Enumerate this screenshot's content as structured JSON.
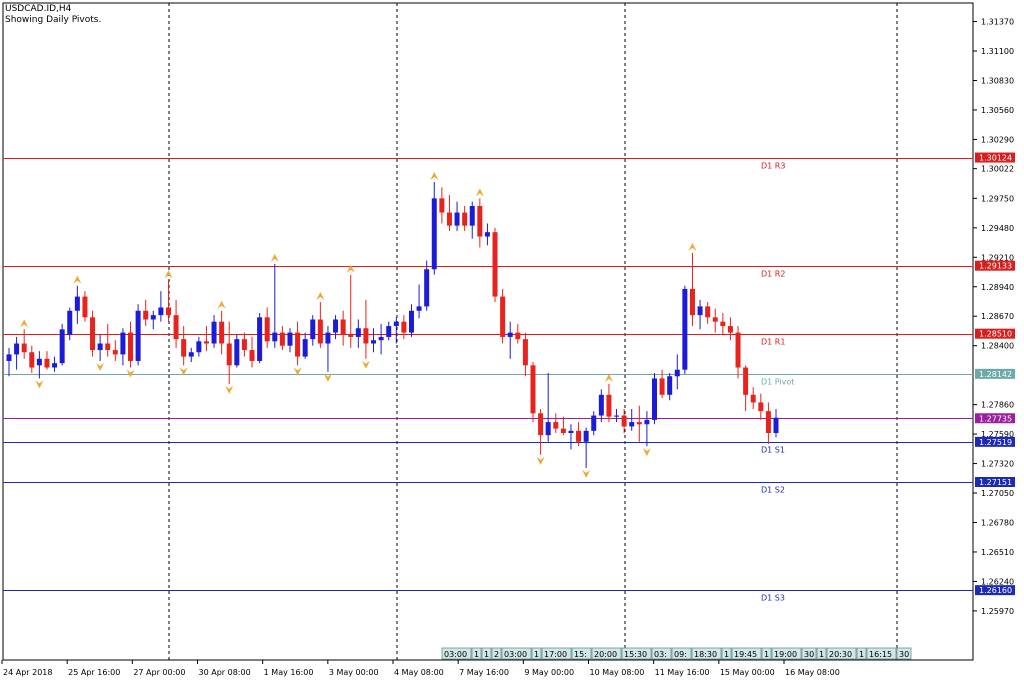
{
  "header": {
    "symbol_line": "USDCAD.ID,H4",
    "subtitle_line": "Showing Daily Pivots."
  },
  "colors": {
    "bull": "#1c1cd8",
    "bear": "#e8231e",
    "resistance": "#d81e1e",
    "support": "#1c2ab8",
    "pivot": "#6fa8a8",
    "current": "#9b1fa0",
    "arrow": "#f0a830",
    "grid": "#000000"
  },
  "y_axis": {
    "min": 1.2552,
    "max": 1.3154,
    "ticks": [
      "1.31370",
      "1.31100",
      "1.30830",
      "1.30560",
      "1.30290",
      "1.30022",
      "1.29750",
      "1.29480",
      "1.29210",
      "1.28940",
      "1.28670",
      "1.28400",
      "1.27860",
      "1.27590",
      "1.27320",
      "1.27050",
      "1.26780",
      "1.26510",
      "1.26240",
      "1.25970"
    ]
  },
  "x_axis": {
    "labels": [
      "24 Apr 2018",
      "25 Apr 16:00",
      "27 Apr 00:00",
      "30 Apr 08:00",
      "1 May 16:00",
      "3 May 00:00",
      "4 May 08:00",
      "7 May 16:00",
      "9 May 00:00",
      "10 May 08:00",
      "11 May 16:00",
      "15 May 00:00",
      "16 May 08:00"
    ]
  },
  "pivot_levels": [
    {
      "name": "D1 R3",
      "value": 1.30124,
      "label": "1.30124",
      "kind": "resistance"
    },
    {
      "name": "D1 R2",
      "value": 1.29133,
      "label": "1.29133",
      "kind": "resistance"
    },
    {
      "name": "D1 R1",
      "value": 1.2851,
      "label": "1.28510",
      "kind": "resistance"
    },
    {
      "name": "D1 Pivot",
      "value": 1.28142,
      "label": "1.28142",
      "kind": "pivot"
    },
    {
      "name": "D1 S1",
      "value": 1.27519,
      "label": "1.27519",
      "kind": "support"
    },
    {
      "name": "D1 S2",
      "value": 1.27151,
      "label": "1.27151",
      "kind": "support"
    },
    {
      "name": "D1 S3",
      "value": 1.2616,
      "label": "1.26160",
      "kind": "support"
    }
  ],
  "current_price": {
    "value": 1.27735,
    "label": "1.27735"
  },
  "session_boxes": [
    "03:00",
    "1",
    "1",
    "2",
    "03:00",
    "1",
    "17:00",
    "15:",
    "20:00",
    "15:30",
    "03:",
    "09:",
    "18:30",
    "1",
    "19:45",
    "1",
    "19:00",
    "30",
    "1",
    "20:30",
    "1",
    "16:15",
    "30"
  ],
  "chart_data": {
    "type": "candlestick",
    "title": "USDCAD.ID,H4",
    "subtitle": "Showing Daily Pivots.",
    "ylim": [
      1.2552,
      1.3154
    ],
    "categories": [
      "24 Apr 2018",
      "25 Apr 16:00",
      "27 Apr 00:00",
      "30 Apr 08:00",
      "1 May 16:00",
      "3 May 00:00",
      "4 May 08:00",
      "7 May 16:00",
      "9 May 00:00",
      "10 May 08:00",
      "11 May 16:00",
      "15 May 00:00",
      "16 May 08:00"
    ],
    "candles": [
      {
        "o": 1.2826,
        "h": 1.2838,
        "l": 1.2812,
        "c": 1.2832
      },
      {
        "o": 1.2832,
        "h": 1.2848,
        "l": 1.2818,
        "c": 1.2842
      },
      {
        "o": 1.2842,
        "h": 1.2855,
        "l": 1.2828,
        "c": 1.2834
      },
      {
        "o": 1.2834,
        "h": 1.284,
        "l": 1.2815,
        "c": 1.282
      },
      {
        "o": 1.2822,
        "h": 1.2835,
        "l": 1.281,
        "c": 1.2828
      },
      {
        "o": 1.2828,
        "h": 1.2835,
        "l": 1.2818,
        "c": 1.282
      },
      {
        "o": 1.282,
        "h": 1.283,
        "l": 1.2816,
        "c": 1.2824
      },
      {
        "o": 1.2824,
        "h": 1.286,
        "l": 1.2822,
        "c": 1.2855
      },
      {
        "o": 1.285,
        "h": 1.2875,
        "l": 1.2845,
        "c": 1.2872
      },
      {
        "o": 1.2872,
        "h": 1.2895,
        "l": 1.286,
        "c": 1.2885
      },
      {
        "o": 1.2885,
        "h": 1.289,
        "l": 1.2862,
        "c": 1.2866
      },
      {
        "o": 1.2866,
        "h": 1.2872,
        "l": 1.283,
        "c": 1.2836
      },
      {
        "o": 1.2836,
        "h": 1.285,
        "l": 1.2826,
        "c": 1.2842
      },
      {
        "o": 1.2842,
        "h": 1.286,
        "l": 1.283,
        "c": 1.2836
      },
      {
        "o": 1.2836,
        "h": 1.2845,
        "l": 1.2826,
        "c": 1.2832
      },
      {
        "o": 1.2832,
        "h": 1.2856,
        "l": 1.2822,
        "c": 1.2852
      },
      {
        "o": 1.2852,
        "h": 1.2862,
        "l": 1.282,
        "c": 1.2826
      },
      {
        "o": 1.2826,
        "h": 1.2878,
        "l": 1.2822,
        "c": 1.2872
      },
      {
        "o": 1.2872,
        "h": 1.2882,
        "l": 1.2858,
        "c": 1.2864
      },
      {
        "o": 1.2864,
        "h": 1.2872,
        "l": 1.2855,
        "c": 1.2868
      },
      {
        "o": 1.2868,
        "h": 1.289,
        "l": 1.2862,
        "c": 1.2875
      },
      {
        "o": 1.2875,
        "h": 1.29,
        "l": 1.2862,
        "c": 1.2868
      },
      {
        "o": 1.2868,
        "h": 1.2882,
        "l": 1.2838,
        "c": 1.2846
      },
      {
        "o": 1.2846,
        "h": 1.2858,
        "l": 1.2822,
        "c": 1.283
      },
      {
        "o": 1.283,
        "h": 1.2838,
        "l": 1.2825,
        "c": 1.2834
      },
      {
        "o": 1.2834,
        "h": 1.2848,
        "l": 1.283,
        "c": 1.2844
      },
      {
        "o": 1.2844,
        "h": 1.2858,
        "l": 1.2835,
        "c": 1.2842
      },
      {
        "o": 1.2842,
        "h": 1.2868,
        "l": 1.2838,
        "c": 1.2862
      },
      {
        "o": 1.2862,
        "h": 1.2872,
        "l": 1.2832,
        "c": 1.2842
      },
      {
        "o": 1.2842,
        "h": 1.2862,
        "l": 1.2805,
        "c": 1.2822
      },
      {
        "o": 1.2822,
        "h": 1.285,
        "l": 1.282,
        "c": 1.2846
      },
      {
        "o": 1.2846,
        "h": 1.2852,
        "l": 1.283,
        "c": 1.2836
      },
      {
        "o": 1.2836,
        "h": 1.2848,
        "l": 1.282,
        "c": 1.2826
      },
      {
        "o": 1.2826,
        "h": 1.287,
        "l": 1.2824,
        "c": 1.2866
      },
      {
        "o": 1.2866,
        "h": 1.2875,
        "l": 1.2838,
        "c": 1.2844
      },
      {
        "o": 1.2844,
        "h": 1.2915,
        "l": 1.2838,
        "c": 1.2852
      },
      {
        "o": 1.2852,
        "h": 1.2858,
        "l": 1.2836,
        "c": 1.284
      },
      {
        "o": 1.284,
        "h": 1.2856,
        "l": 1.2834,
        "c": 1.2852
      },
      {
        "o": 1.2852,
        "h": 1.2862,
        "l": 1.2822,
        "c": 1.283
      },
      {
        "o": 1.283,
        "h": 1.2852,
        "l": 1.2828,
        "c": 1.2846
      },
      {
        "o": 1.2846,
        "h": 1.2868,
        "l": 1.284,
        "c": 1.2864
      },
      {
        "o": 1.2864,
        "h": 1.288,
        "l": 1.2838,
        "c": 1.2842
      },
      {
        "o": 1.2842,
        "h": 1.2858,
        "l": 1.2816,
        "c": 1.2852
      },
      {
        "o": 1.2852,
        "h": 1.2868,
        "l": 1.2846,
        "c": 1.2864
      },
      {
        "o": 1.2864,
        "h": 1.2872,
        "l": 1.284,
        "c": 1.285
      },
      {
        "o": 1.285,
        "h": 1.2905,
        "l": 1.2838,
        "c": 1.2848
      },
      {
        "o": 1.2848,
        "h": 1.2864,
        "l": 1.2838,
        "c": 1.2856
      },
      {
        "o": 1.2856,
        "h": 1.2882,
        "l": 1.2828,
        "c": 1.2842
      },
      {
        "o": 1.2842,
        "h": 1.2856,
        "l": 1.2834,
        "c": 1.2845
      },
      {
        "o": 1.2845,
        "h": 1.286,
        "l": 1.2832,
        "c": 1.2848
      },
      {
        "o": 1.2848,
        "h": 1.2862,
        "l": 1.2845,
        "c": 1.2858
      },
      {
        "o": 1.2858,
        "h": 1.2866,
        "l": 1.2842,
        "c": 1.2862
      },
      {
        "o": 1.2862,
        "h": 1.2868,
        "l": 1.2846,
        "c": 1.2852
      },
      {
        "o": 1.2852,
        "h": 1.2878,
        "l": 1.2848,
        "c": 1.2872
      },
      {
        "o": 1.2872,
        "h": 1.2896,
        "l": 1.2865,
        "c": 1.2876
      },
      {
        "o": 1.2876,
        "h": 1.2918,
        "l": 1.2872,
        "c": 1.291
      },
      {
        "o": 1.291,
        "h": 1.299,
        "l": 1.2905,
        "c": 1.2975
      },
      {
        "o": 1.2975,
        "h": 1.2985,
        "l": 1.2952,
        "c": 1.2962
      },
      {
        "o": 1.2962,
        "h": 1.2978,
        "l": 1.2945,
        "c": 1.295
      },
      {
        "o": 1.295,
        "h": 1.2972,
        "l": 1.2945,
        "c": 1.2962
      },
      {
        "o": 1.2962,
        "h": 1.2968,
        "l": 1.2945,
        "c": 1.295
      },
      {
        "o": 1.295,
        "h": 1.2972,
        "l": 1.2938,
        "c": 1.2968
      },
      {
        "o": 1.2968,
        "h": 1.2975,
        "l": 1.293,
        "c": 1.294
      },
      {
        "o": 1.294,
        "h": 1.2952,
        "l": 1.2932,
        "c": 1.2944
      },
      {
        "o": 1.2944,
        "h": 1.2948,
        "l": 1.288,
        "c": 1.2885
      },
      {
        "o": 1.2885,
        "h": 1.2892,
        "l": 1.2842,
        "c": 1.2848
      },
      {
        "o": 1.2848,
        "h": 1.2862,
        "l": 1.2828,
        "c": 1.2852
      },
      {
        "o": 1.2852,
        "h": 1.286,
        "l": 1.2842,
        "c": 1.2846
      },
      {
        "o": 1.2846,
        "h": 1.2852,
        "l": 1.2812,
        "c": 1.2822
      },
      {
        "o": 1.2822,
        "h": 1.2825,
        "l": 1.277,
        "c": 1.2778
      },
      {
        "o": 1.2778,
        "h": 1.2782,
        "l": 1.274,
        "c": 1.2758
      },
      {
        "o": 1.2758,
        "h": 1.2815,
        "l": 1.2752,
        "c": 1.277
      },
      {
        "o": 1.277,
        "h": 1.2778,
        "l": 1.276,
        "c": 1.2764
      },
      {
        "o": 1.2764,
        "h": 1.2775,
        "l": 1.2758,
        "c": 1.276
      },
      {
        "o": 1.276,
        "h": 1.2768,
        "l": 1.2745,
        "c": 1.2762
      },
      {
        "o": 1.2762,
        "h": 1.277,
        "l": 1.2748,
        "c": 1.2752
      },
      {
        "o": 1.2752,
        "h": 1.2765,
        "l": 1.2728,
        "c": 1.2762
      },
      {
        "o": 1.2762,
        "h": 1.278,
        "l": 1.2758,
        "c": 1.2776
      },
      {
        "o": 1.2776,
        "h": 1.28,
        "l": 1.277,
        "c": 1.2795
      },
      {
        "o": 1.2795,
        "h": 1.2805,
        "l": 1.277,
        "c": 1.2775
      },
      {
        "o": 1.2775,
        "h": 1.2782,
        "l": 1.277,
        "c": 1.2776
      },
      {
        "o": 1.2776,
        "h": 1.2782,
        "l": 1.276,
        "c": 1.2766
      },
      {
        "o": 1.2766,
        "h": 1.2782,
        "l": 1.2762,
        "c": 1.277
      },
      {
        "o": 1.277,
        "h": 1.2785,
        "l": 1.2752,
        "c": 1.2768
      },
      {
        "o": 1.2768,
        "h": 1.278,
        "l": 1.2748,
        "c": 1.2772
      },
      {
        "o": 1.2772,
        "h": 1.2815,
        "l": 1.2768,
        "c": 1.281
      },
      {
        "o": 1.281,
        "h": 1.2818,
        "l": 1.2792,
        "c": 1.2795
      },
      {
        "o": 1.2795,
        "h": 1.2815,
        "l": 1.279,
        "c": 1.2812
      },
      {
        "o": 1.2812,
        "h": 1.2832,
        "l": 1.28,
        "c": 1.2818
      },
      {
        "o": 1.2818,
        "h": 1.2895,
        "l": 1.2814,
        "c": 1.2892
      },
      {
        "o": 1.2892,
        "h": 1.2925,
        "l": 1.2858,
        "c": 1.2868
      },
      {
        "o": 1.2868,
        "h": 1.2882,
        "l": 1.2855,
        "c": 1.2876
      },
      {
        "o": 1.2876,
        "h": 1.288,
        "l": 1.286,
        "c": 1.2866
      },
      {
        "o": 1.2866,
        "h": 1.2874,
        "l": 1.2852,
        "c": 1.2862
      },
      {
        "o": 1.2862,
        "h": 1.287,
        "l": 1.285,
        "c": 1.2858
      },
      {
        "o": 1.2858,
        "h": 1.2866,
        "l": 1.2845,
        "c": 1.2852
      },
      {
        "o": 1.2852,
        "h": 1.2858,
        "l": 1.281,
        "c": 1.282
      },
      {
        "o": 1.282,
        "h": 1.2822,
        "l": 1.278,
        "c": 1.2795
      },
      {
        "o": 1.2795,
        "h": 1.2802,
        "l": 1.2782,
        "c": 1.2788
      },
      {
        "o": 1.2788,
        "h": 1.2796,
        "l": 1.2772,
        "c": 1.278
      },
      {
        "o": 1.278,
        "h": 1.2788,
        "l": 1.275,
        "c": 1.276
      },
      {
        "o": 1.276,
        "h": 1.2782,
        "l": 1.2756,
        "c": 1.2774
      }
    ]
  }
}
